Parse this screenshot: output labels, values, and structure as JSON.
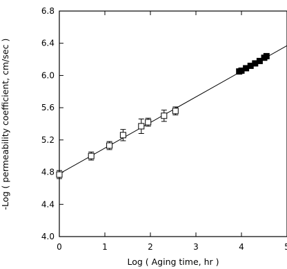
{
  "chart_data": {
    "type": "scatter",
    "title": "",
    "xlabel": "Log ( Aging time, hr )",
    "ylabel": "-Log ( permeability coefficient, cm/sec )",
    "xlim": [
      0,
      5
    ],
    "ylim": [
      4.0,
      6.8
    ],
    "x_ticks": [
      0,
      1,
      2,
      3,
      4,
      5
    ],
    "x_tick_labels": [
      "0",
      "1",
      "2",
      "3",
      "4",
      "5"
    ],
    "y_ticks": [
      4.0,
      4.4,
      4.8,
      5.2,
      5.6,
      6.0,
      6.4,
      6.8
    ],
    "y_tick_labels": [
      "4.0",
      "4.4",
      "4.8",
      "5.2",
      "5.6",
      "6.0",
      "6.4",
      "6.8"
    ],
    "grid": false,
    "series": [
      {
        "marker": "open-square",
        "x": [
          0.0,
          0.7,
          1.1,
          1.4,
          1.8,
          1.95,
          2.3,
          2.55
        ],
        "y": [
          4.77,
          5.0,
          5.13,
          5.26,
          5.37,
          5.42,
          5.5,
          5.56
        ],
        "error": [
          0.05,
          0.05,
          0.05,
          0.07,
          0.09,
          0.05,
          0.07,
          0.05
        ]
      },
      {
        "marker": "filled-square",
        "x": [
          3.95,
          4.0,
          4.1,
          4.2,
          4.3,
          4.4,
          4.5,
          4.55
        ],
        "y": [
          6.05,
          6.06,
          6.09,
          6.12,
          6.15,
          6.18,
          6.22,
          6.24
        ]
      }
    ],
    "fit_line": {
      "x": [
        0,
        5
      ],
      "y": [
        4.78,
        6.37
      ]
    }
  }
}
